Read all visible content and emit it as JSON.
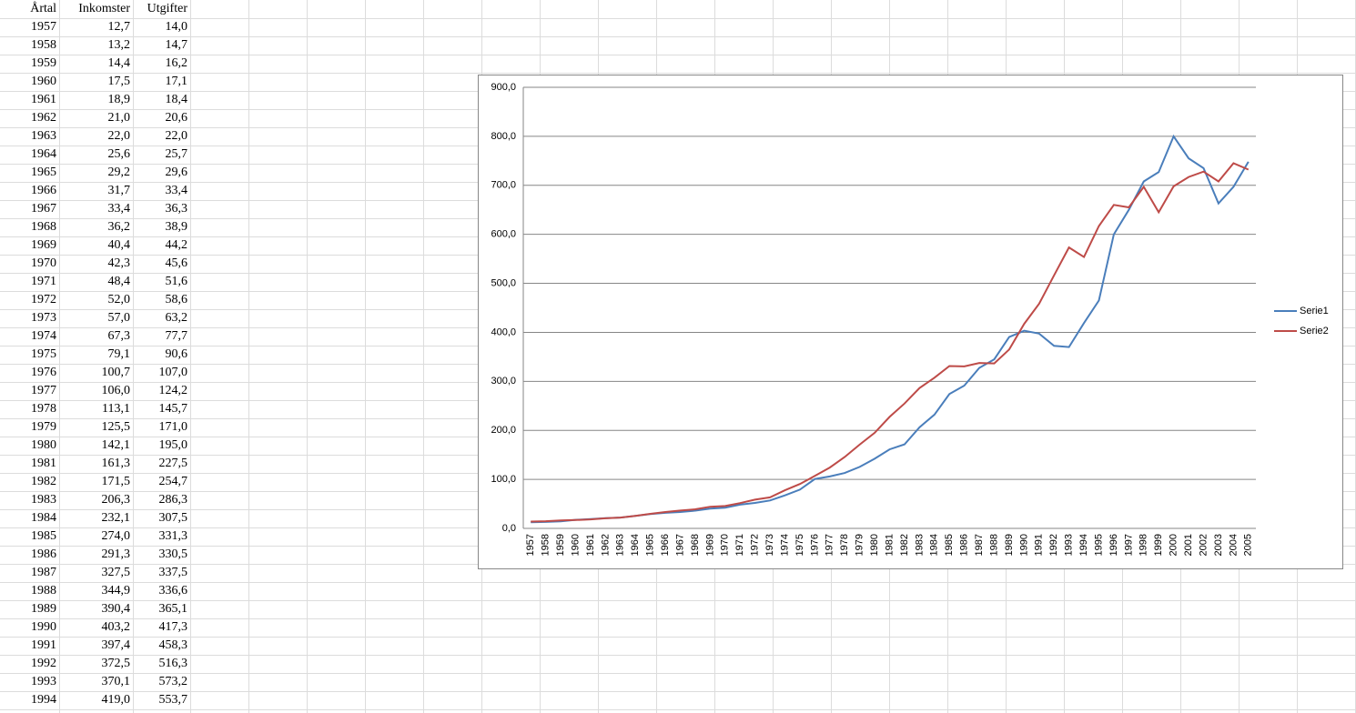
{
  "table": {
    "header": [
      "Årtal",
      "Inkomster",
      "Utgifter"
    ],
    "rows": [
      [
        "1957",
        "12,7",
        "14,0"
      ],
      [
        "1958",
        "13,2",
        "14,7"
      ],
      [
        "1959",
        "14,4",
        "16,2"
      ],
      [
        "1960",
        "17,5",
        "17,1"
      ],
      [
        "1961",
        "18,9",
        "18,4"
      ],
      [
        "1962",
        "21,0",
        "20,6"
      ],
      [
        "1963",
        "22,0",
        "22,0"
      ],
      [
        "1964",
        "25,6",
        "25,7"
      ],
      [
        "1965",
        "29,2",
        "29,6"
      ],
      [
        "1966",
        "31,7",
        "33,4"
      ],
      [
        "1967",
        "33,4",
        "36,3"
      ],
      [
        "1968",
        "36,2",
        "38,9"
      ],
      [
        "1969",
        "40,4",
        "44,2"
      ],
      [
        "1970",
        "42,3",
        "45,6"
      ],
      [
        "1971",
        "48,4",
        "51,6"
      ],
      [
        "1972",
        "52,0",
        "58,6"
      ],
      [
        "1973",
        "57,0",
        "63,2"
      ],
      [
        "1974",
        "67,3",
        "77,7"
      ],
      [
        "1975",
        "79,1",
        "90,6"
      ],
      [
        "1976",
        "100,7",
        "107,0"
      ],
      [
        "1977",
        "106,0",
        "124,2"
      ],
      [
        "1978",
        "113,1",
        "145,7"
      ],
      [
        "1979",
        "125,5",
        "171,0"
      ],
      [
        "1980",
        "142,1",
        "195,0"
      ],
      [
        "1981",
        "161,3",
        "227,5"
      ],
      [
        "1982",
        "171,5",
        "254,7"
      ],
      [
        "1983",
        "206,3",
        "286,3"
      ],
      [
        "1984",
        "232,1",
        "307,5"
      ],
      [
        "1985",
        "274,0",
        "331,3"
      ],
      [
        "1986",
        "291,3",
        "330,5"
      ],
      [
        "1987",
        "327,5",
        "337,5"
      ],
      [
        "1988",
        "344,9",
        "336,6"
      ],
      [
        "1989",
        "390,4",
        "365,1"
      ],
      [
        "1990",
        "403,2",
        "417,3"
      ],
      [
        "1991",
        "397,4",
        "458,3"
      ],
      [
        "1992",
        "372,5",
        "516,3"
      ],
      [
        "1993",
        "370,1",
        "573,2"
      ],
      [
        "1994",
        "419,0",
        "553,7"
      ]
    ]
  },
  "chart_data": {
    "type": "line",
    "categories": [
      "1957",
      "1958",
      "1959",
      "1960",
      "1961",
      "1962",
      "1963",
      "1964",
      "1965",
      "1966",
      "1967",
      "1968",
      "1969",
      "1970",
      "1971",
      "1972",
      "1973",
      "1974",
      "1975",
      "1976",
      "1977",
      "1978",
      "1979",
      "1980",
      "1981",
      "1982",
      "1983",
      "1984",
      "1985",
      "1986",
      "1987",
      "1988",
      "1989",
      "1990",
      "1991",
      "1992",
      "1993",
      "1994",
      "1995",
      "1996",
      "1997",
      "1998",
      "1999",
      "2000",
      "2001",
      "2002",
      "2003",
      "2004",
      "2005"
    ],
    "series": [
      {
        "name": "Serie1",
        "color": "#4a7ebb",
        "values": [
          12.7,
          13.2,
          14.4,
          17.5,
          18.9,
          21.0,
          22.0,
          25.6,
          29.2,
          31.7,
          33.4,
          36.2,
          40.4,
          42.3,
          48.4,
          52.0,
          57.0,
          67.3,
          79.1,
          100.7,
          106.0,
          113.1,
          125.5,
          142.1,
          161.3,
          171.5,
          206.3,
          232.1,
          274.0,
          291.3,
          327.5,
          344.9,
          390.4,
          403.2,
          397.4,
          372.5,
          370.1,
          419.0,
          465,
          600,
          650,
          708,
          727,
          800,
          755,
          735,
          663,
          697,
          748
        ]
      },
      {
        "name": "Serie2",
        "color": "#be4b48",
        "values": [
          14.0,
          14.7,
          16.2,
          17.1,
          18.4,
          20.6,
          22.0,
          25.7,
          29.6,
          33.4,
          36.3,
          38.9,
          44.2,
          45.6,
          51.6,
          58.6,
          63.2,
          77.7,
          90.6,
          107.0,
          124.2,
          145.7,
          171.0,
          195.0,
          227.5,
          254.7,
          286.3,
          307.5,
          331.3,
          330.5,
          337.5,
          336.6,
          365.1,
          417.3,
          458.3,
          516.3,
          573.2,
          553.7,
          617,
          660,
          655,
          697,
          645,
          698,
          717,
          728,
          708,
          745,
          732
        ]
      }
    ],
    "ylim": [
      0,
      900
    ],
    "yticks": [
      {
        "value": 0,
        "label": "0,0"
      },
      {
        "value": 100,
        "label": "100,0"
      },
      {
        "value": 200,
        "label": "200,0"
      },
      {
        "value": 300,
        "label": "300,0"
      },
      {
        "value": 400,
        "label": "400,0"
      },
      {
        "value": 500,
        "label": "500,0"
      },
      {
        "value": 600,
        "label": "600,0"
      },
      {
        "value": 700,
        "label": "700,0"
      },
      {
        "value": 800,
        "label": "800,0"
      },
      {
        "value": 900,
        "label": "900,0"
      }
    ],
    "grid": true,
    "legend": "right"
  }
}
